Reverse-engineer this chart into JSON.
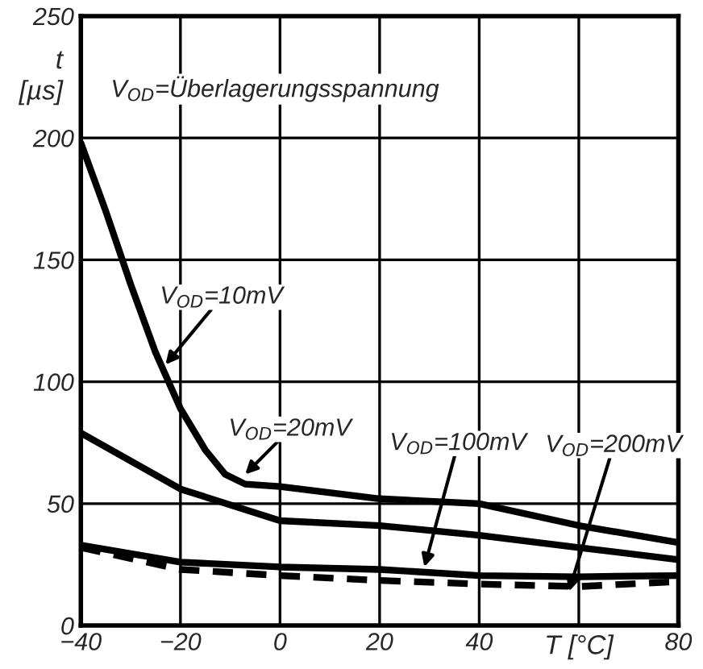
{
  "chart_data": {
    "type": "line",
    "x": [
      -40,
      -20,
      0,
      20,
      40,
      60,
      80
    ],
    "series": [
      {
        "color": "#000000",
        "line_style": "solid",
        "x": [
          -40,
          -35,
          -30,
          -25,
          -20,
          -15,
          -11,
          -7,
          0,
          20,
          40,
          60,
          80
        ],
        "values": [
          198,
          170,
          140,
          112,
          89,
          72,
          62,
          58,
          57,
          52,
          50,
          41,
          34
        ]
      },
      {
        "color": "#000000",
        "line_style": "solid",
        "values": [
          79,
          56,
          43,
          41,
          37,
          32,
          27
        ]
      },
      {
        "color": "#000000",
        "line_style": "solid",
        "values": [
          33,
          26,
          24,
          23,
          20.5,
          20,
          20.5
        ]
      },
      {
        "color": "#000000",
        "line_style": "dashed",
        "values": [
          32,
          23,
          20.5,
          18.5,
          17,
          16,
          18
        ]
      }
    ],
    "xlim": [
      -40,
      80
    ],
    "ylim": [
      0,
      250
    ],
    "xticks": [
      -40,
      -20,
      0,
      20,
      40,
      {
        "value": 60,
        "label": null
      },
      80
    ],
    "yticks": [
      0,
      50,
      100,
      150,
      200,
      250
    ],
    "xlabel": "T [°C]",
    "ylabel": "t\n[µs]",
    "grid": true,
    "marker": "none",
    "annotations": [
      "V$_{OD}$=Überlagerungsspannung",
      {
        "text": "V$_{OD}$=10mV",
        "x": -23,
        "y": 107
      },
      {
        "text": "V$_{OD}$=20mV",
        "x": -7,
        "y": 62
      },
      {
        "text": "V$_{OD}$=100mV",
        "x": 29,
        "y": 24
      },
      {
        "text": "V$_{OD}$=200mV",
        "x": 58,
        "y": 14
      }
    ]
  }
}
